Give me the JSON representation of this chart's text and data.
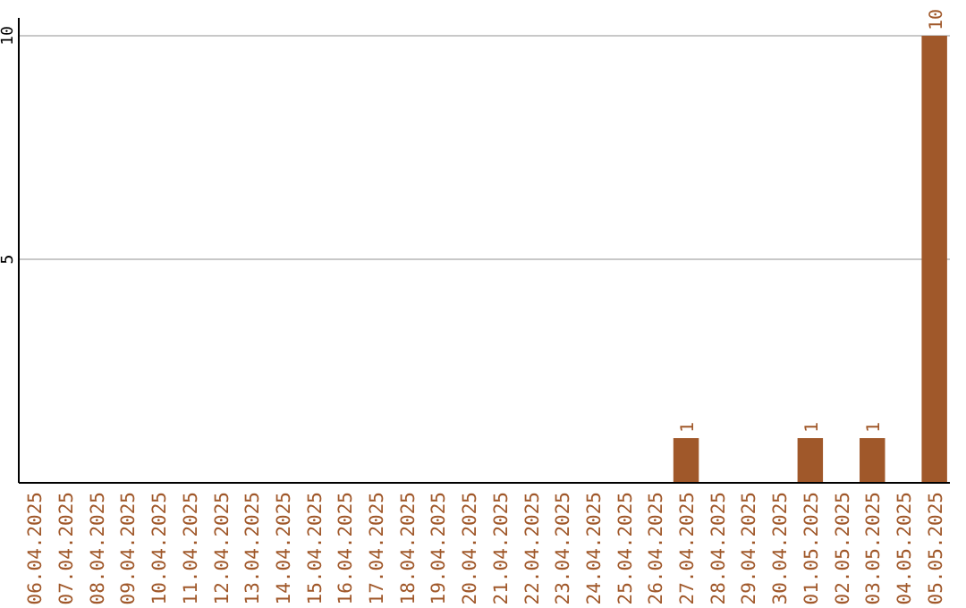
{
  "chart_data": {
    "type": "bar",
    "categories": [
      "06.04.2025",
      "07.04.2025",
      "08.04.2025",
      "09.04.2025",
      "10.04.2025",
      "11.04.2025",
      "12.04.2025",
      "13.04.2025",
      "14.04.2025",
      "15.04.2025",
      "16.04.2025",
      "17.04.2025",
      "18.04.2025",
      "19.04.2025",
      "20.04.2025",
      "21.04.2025",
      "22.04.2025",
      "23.04.2025",
      "24.04.2025",
      "25.04.2025",
      "26.04.2025",
      "27.04.2025",
      "28.04.2025",
      "29.04.2025",
      "30.04.2025",
      "01.05.2025",
      "02.05.2025",
      "03.05.2025",
      "04.05.2025",
      "05.05.2025"
    ],
    "values": [
      0,
      0,
      0,
      0,
      0,
      0,
      0,
      0,
      0,
      0,
      0,
      0,
      0,
      0,
      0,
      0,
      0,
      0,
      0,
      0,
      0,
      1,
      0,
      0,
      0,
      1,
      0,
      1,
      0,
      10
    ],
    "value_labels": [
      null,
      null,
      null,
      null,
      null,
      null,
      null,
      null,
      null,
      null,
      null,
      null,
      null,
      null,
      null,
      null,
      null,
      null,
      null,
      null,
      null,
      "1",
      null,
      null,
      null,
      "1",
      null,
      "1",
      null,
      "10"
    ],
    "color": "#a0582a",
    "ylim": [
      0,
      10.4
    ],
    "yticks": [
      5,
      10
    ],
    "grid": "y"
  }
}
